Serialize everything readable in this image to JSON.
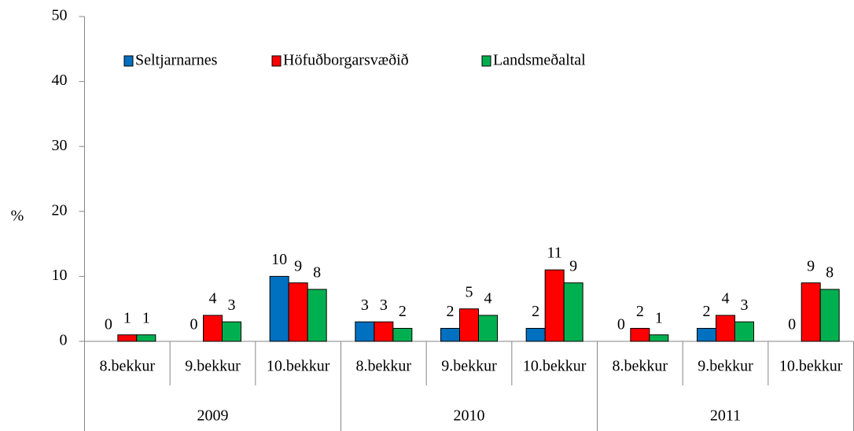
{
  "chart_data": {
    "type": "bar",
    "y_label": "%",
    "categories": [
      "8.bekkur",
      "9.bekkur",
      "10.bekkur",
      "8.bekkur",
      "9.bekkur",
      "10.bekkur",
      "8.bekkur",
      "9.bekkur",
      "10.bekkur"
    ],
    "groups": [
      "2009",
      "2010",
      "2011"
    ],
    "series": [
      {
        "name": "Seltjarnarnes",
        "color": "#0070c0",
        "values": [
          0,
          0,
          10,
          3,
          2,
          2,
          0,
          2,
          0
        ]
      },
      {
        "name": "Höfuðborgarsvæðið",
        "color": "#ff0000",
        "values": [
          1,
          4,
          9,
          3,
          5,
          11,
          2,
          4,
          9
        ]
      },
      {
        "name": "Landsmeðaltal",
        "color": "#00b050",
        "values": [
          1,
          3,
          8,
          2,
          4,
          9,
          1,
          3,
          8
        ]
      }
    ],
    "ylim": [
      0,
      50
    ],
    "yticks": [
      0,
      10,
      20,
      30,
      40,
      50
    ],
    "grid": false,
    "legend": "top-left"
  }
}
